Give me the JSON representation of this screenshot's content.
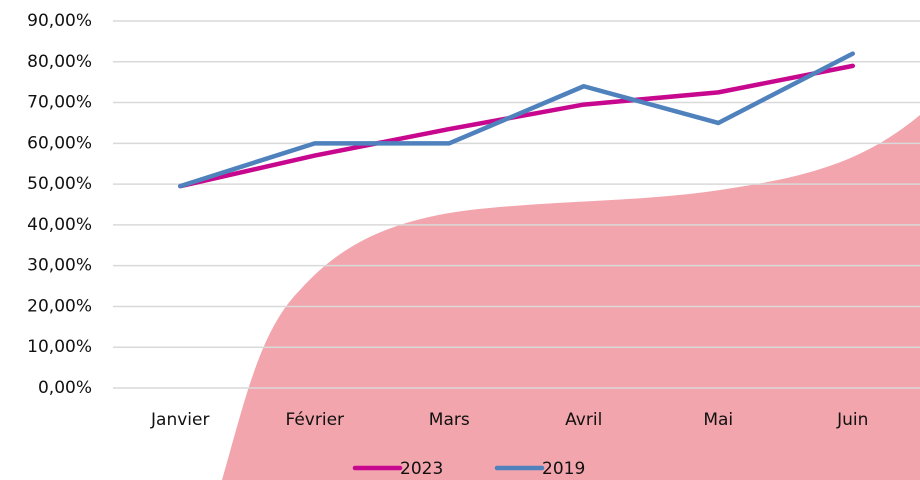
{
  "chart_data": {
    "type": "line",
    "categories": [
      "Janvier",
      "Février",
      "Mars",
      "Avril",
      "Mai",
      "Juin"
    ],
    "series": [
      {
        "name": "2023",
        "color": "#c8078f",
        "values": [
          49.5,
          57,
          63.5,
          69.5,
          72.5,
          79
        ]
      },
      {
        "name": "2019",
        "color": "#4f81bd",
        "values": [
          49.5,
          60,
          60,
          74,
          65,
          82
        ]
      }
    ],
    "ylim": [
      0,
      90
    ],
    "yticks": [
      {
        "value": 0,
        "label": "0,00%"
      },
      {
        "value": 10,
        "label": "10,00%"
      },
      {
        "value": 20,
        "label": "20,00%"
      },
      {
        "value": 30,
        "label": "30,00%"
      },
      {
        "value": 40,
        "label": "40,00%"
      },
      {
        "value": 50,
        "label": "50,00%"
      },
      {
        "value": 60,
        "label": "60,00%"
      },
      {
        "value": 70,
        "label": "70,00%"
      },
      {
        "value": 80,
        "label": "80,00%"
      },
      {
        "value": 90,
        "label": "90,00%"
      }
    ],
    "grid": true,
    "legend": "bottom"
  }
}
